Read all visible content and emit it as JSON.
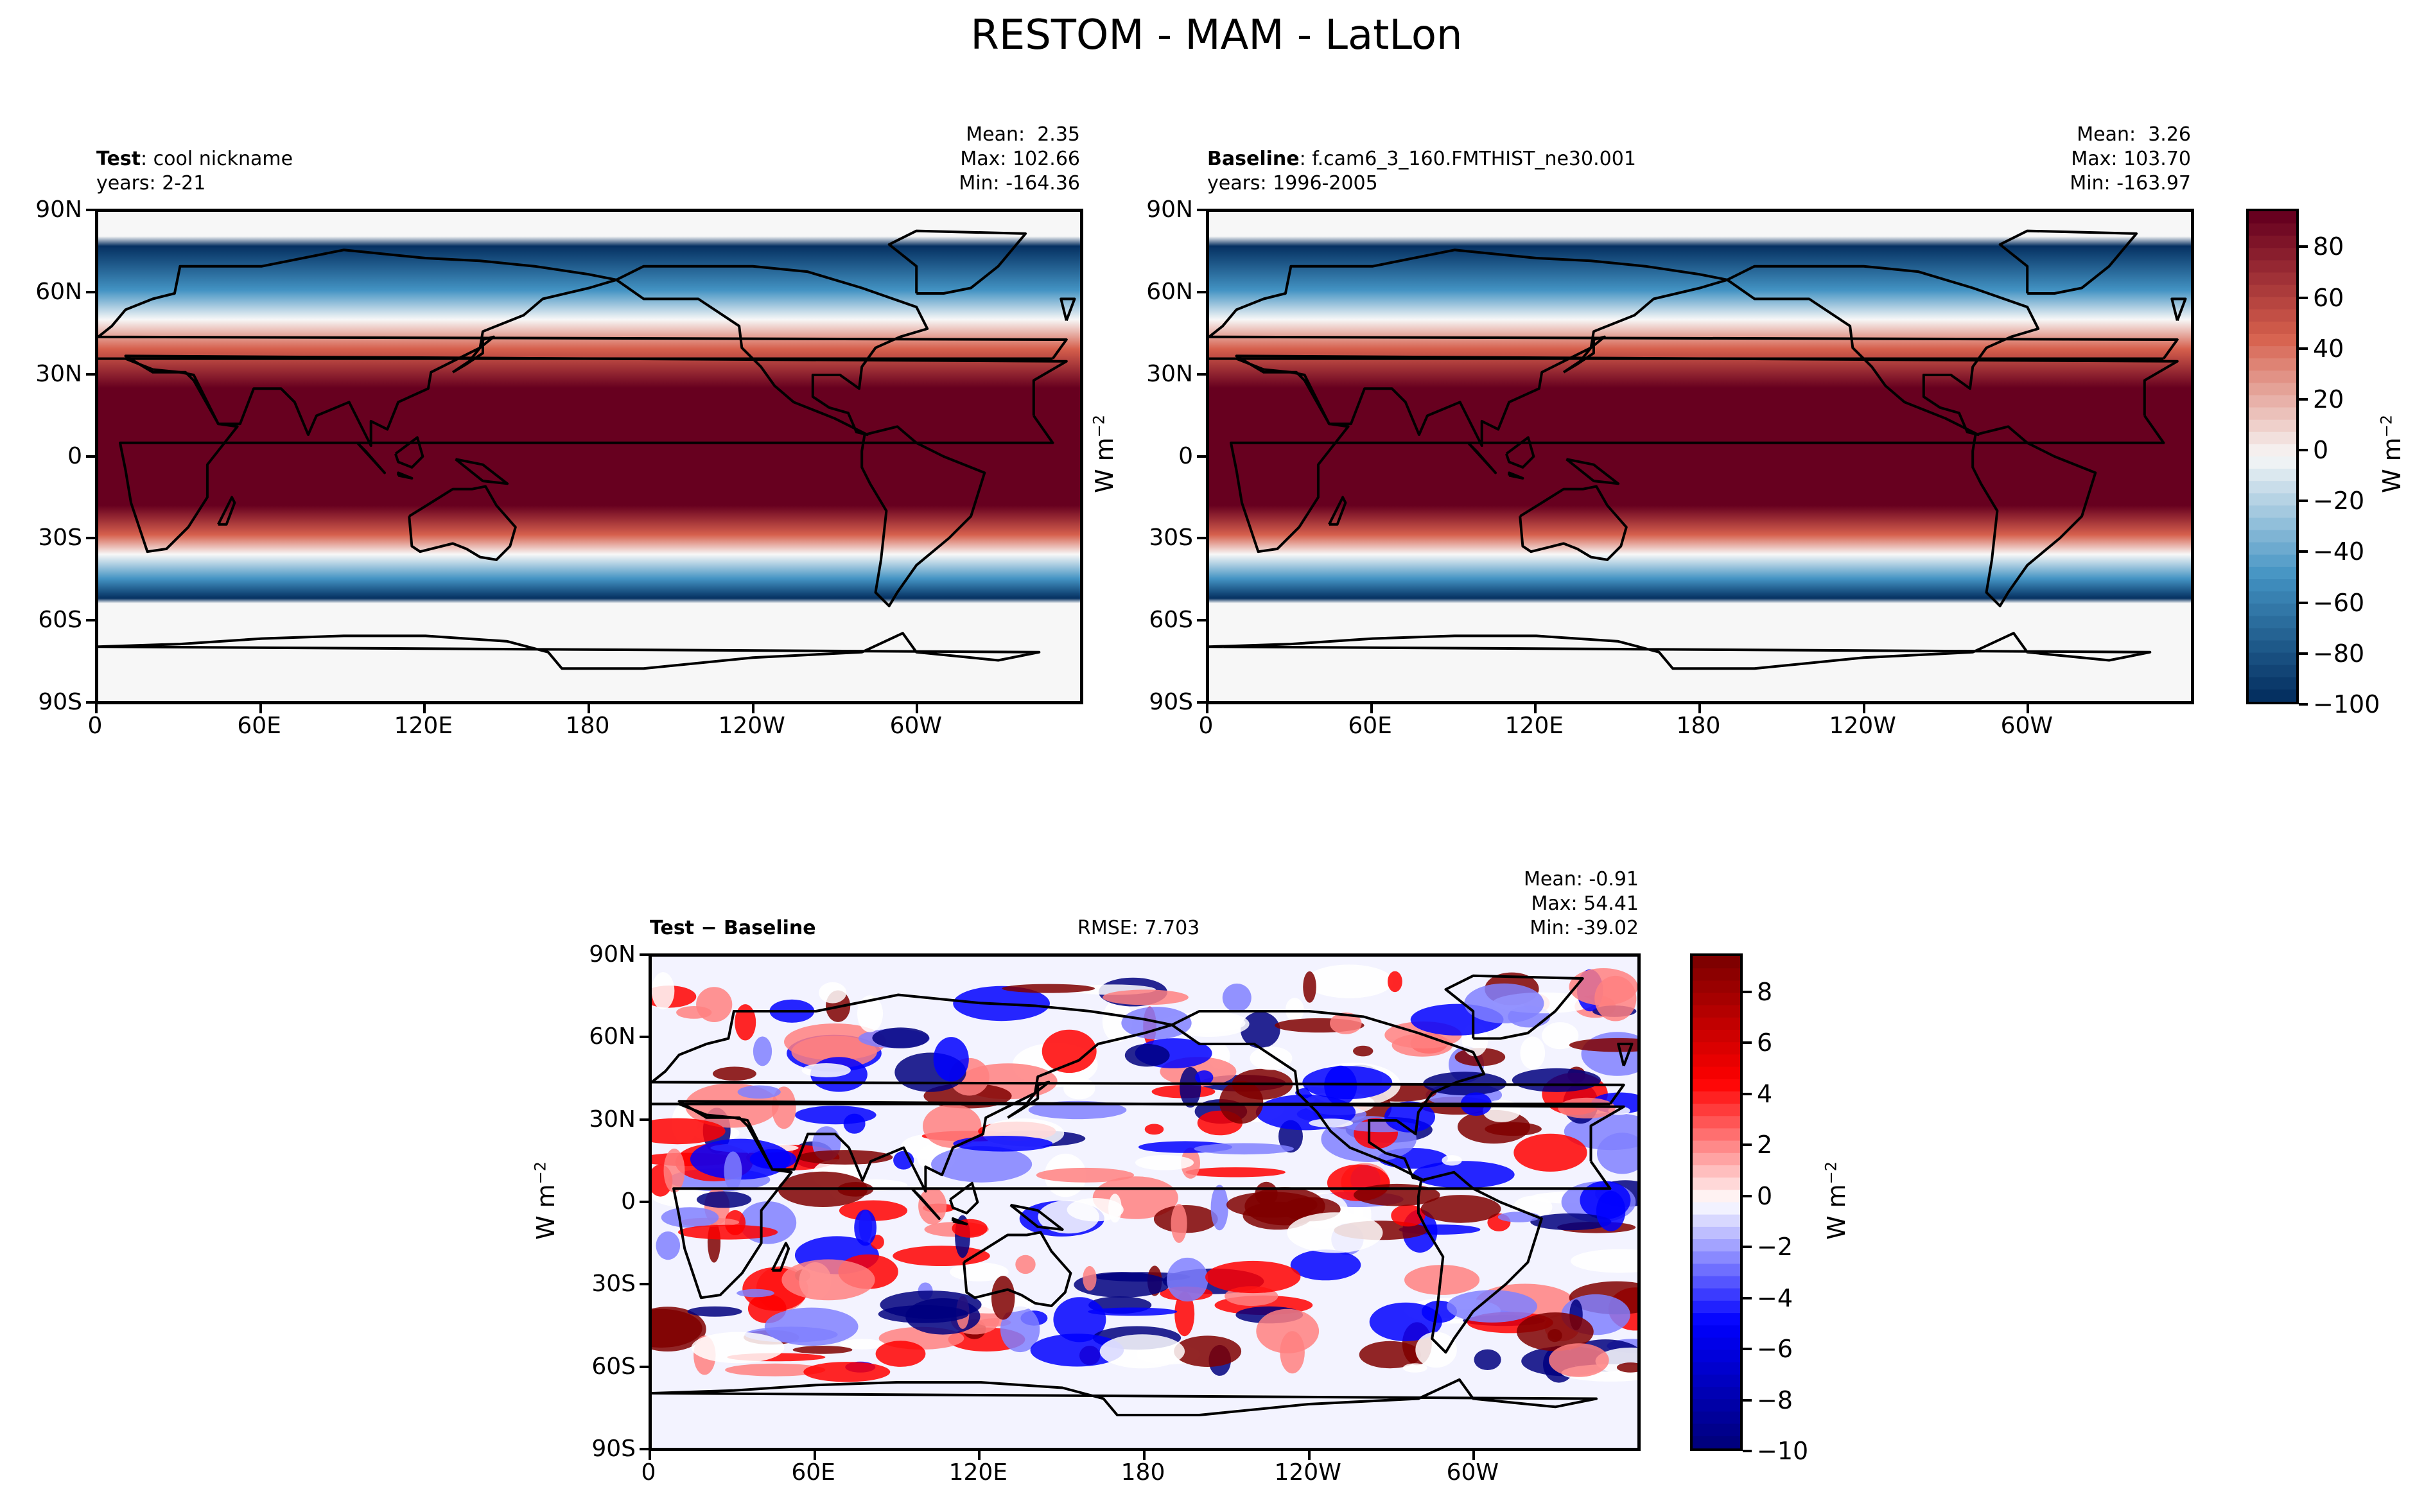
{
  "title": "RESTOM - MAM - LatLon",
  "colors": {
    "rdbu_dark_red": "#67001f",
    "rdbu_red": "#d6604d",
    "rdbu_white": "#f7f7f7",
    "rdbu_blue": "#4393c3",
    "rdbu_dark_blue": "#053061",
    "bwr_dark_red": "#7f0000",
    "bwr_red": "#ff0000",
    "bwr_blue": "#0000ff",
    "bwr_dark_blue": "#00007f"
  },
  "unit_label": "W m",
  "unit_exponent": "−2",
  "chart_data": [
    {
      "type": "heatmap",
      "panel": "test",
      "name_bold": "Test",
      "name_rest": ": cool nickname",
      "years": "years: 2-21",
      "stats": {
        "mean": "Mean:  2.35",
        "max": "Max: 102.66",
        "min": "Min: -164.36"
      },
      "xlim": [
        0,
        360
      ],
      "ylim": [
        -90,
        90
      ],
      "x_ticks": [
        "0",
        "60E",
        "120E",
        "180",
        "120W",
        "60W"
      ],
      "y_ticks": [
        "90N",
        "60N",
        "30N",
        "0",
        "30S",
        "60S",
        "90S"
      ],
      "colorbar": false
    },
    {
      "type": "heatmap",
      "panel": "baseline",
      "name_bold": "Baseline",
      "name_rest": ": f.cam6_3_160.FMTHIST_ne30.001",
      "years": "years: 1996-2005",
      "stats": {
        "mean": "Mean:  3.26",
        "max": "Max: 103.70",
        "min": "Min: -163.97"
      },
      "xlim": [
        0,
        360
      ],
      "ylim": [
        -90,
        90
      ],
      "x_ticks": [
        "0",
        "60E",
        "120E",
        "180",
        "120W",
        "60W"
      ],
      "y_ticks": [
        "90N",
        "60N",
        "30N",
        "0",
        "30S",
        "60S",
        "90S"
      ],
      "colorbar": {
        "range": [
          -100,
          95
        ],
        "ticks": [
          "80",
          "60",
          "40",
          "20",
          "0",
          "−20",
          "−40",
          "−60",
          "−80",
          "−100"
        ],
        "tick_values": [
          80,
          60,
          40,
          20,
          0,
          -20,
          -40,
          -60,
          -80,
          -100
        ],
        "cmap": "RdBu_r"
      }
    },
    {
      "type": "heatmap",
      "panel": "difference",
      "name_bold": "Test − Baseline",
      "rmse": "RMSE: 7.703",
      "stats": {
        "mean": "Mean: -0.91",
        "max": "Max: 54.41",
        "min": "Min: -39.02"
      },
      "xlim": [
        0,
        360
      ],
      "ylim": [
        -90,
        90
      ],
      "x_ticks": [
        "0",
        "60E",
        "120E",
        "180",
        "120W",
        "60W"
      ],
      "y_ticks": [
        "90N",
        "60N",
        "30N",
        "0",
        "30S",
        "60S",
        "90S"
      ],
      "colorbar": {
        "range": [
          -10,
          9.5
        ],
        "ticks": [
          "8",
          "6",
          "4",
          "2",
          "0",
          "−2",
          "−4",
          "−6",
          "−8",
          "−10"
        ],
        "tick_values": [
          8,
          6,
          4,
          2,
          0,
          -2,
          -4,
          -6,
          -8,
          -10
        ],
        "cmap": "bwr"
      }
    }
  ]
}
